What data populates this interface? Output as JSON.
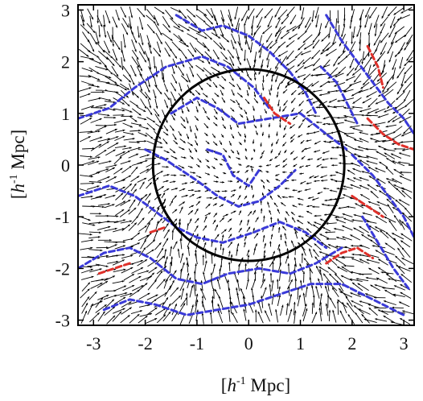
{
  "chart_data": {
    "type": "vector-field",
    "title": "",
    "xlabel": {
      "bracket_open": "[",
      "italic": "h",
      "sup": "-1",
      "rest": " Mpc]"
    },
    "ylabel": {
      "bracket_open": "[",
      "italic": "h",
      "sup": "-1",
      "rest": " Mpc]"
    },
    "xlim": [
      -3.3,
      3.2
    ],
    "ylim": [
      -3.1,
      3.1
    ],
    "xticks": [
      -3,
      -2,
      -1,
      0,
      1,
      2,
      3
    ],
    "yticks": [
      -3,
      -2,
      -1,
      0,
      1,
      2,
      3
    ],
    "xtick_labels": [
      "-3",
      "-2",
      "-1",
      "0",
      "1",
      "2",
      "3"
    ],
    "ytick_labels": [
      "-3",
      "-2",
      "-1",
      "0",
      "1",
      "2",
      "3"
    ],
    "circle": {
      "center": [
        0,
        0
      ],
      "radius": 1.85,
      "color": "#000000"
    },
    "colors": {
      "arrows": "#000000",
      "blue_contour": "#3a3ad8",
      "red_contour": "#e0302a",
      "frame": "#000000"
    },
    "blue_contours": [
      [
        [
          -3.3,
          0.9
        ],
        [
          -2.7,
          1.1
        ],
        [
          -2.2,
          1.5
        ],
        [
          -1.6,
          1.9
        ],
        [
          -0.9,
          2.1
        ],
        [
          -0.4,
          1.9
        ],
        [
          0.1,
          1.5
        ],
        [
          0.4,
          1.1
        ]
      ],
      [
        [
          -1.4,
          2.9
        ],
        [
          -0.9,
          2.6
        ],
        [
          -0.5,
          2.7
        ],
        [
          0.0,
          2.5
        ],
        [
          0.4,
          2.2
        ],
        [
          0.8,
          1.8
        ],
        [
          1.1,
          1.4
        ],
        [
          1.3,
          1.0
        ]
      ],
      [
        [
          -1.5,
          1.0
        ],
        [
          -1.0,
          1.3
        ],
        [
          -0.6,
          1.1
        ],
        [
          -0.2,
          0.8
        ],
        [
          0.4,
          0.9
        ],
        [
          1.0,
          1.0
        ],
        [
          1.5,
          0.6
        ],
        [
          1.9,
          0.3
        ]
      ],
      [
        [
          -2.0,
          0.3
        ],
        [
          -1.6,
          0.1
        ],
        [
          -1.3,
          -0.1
        ],
        [
          -1.0,
          -0.3
        ],
        [
          -0.6,
          -0.6
        ],
        [
          -0.2,
          -0.8
        ],
        [
          0.2,
          -0.7
        ],
        [
          0.6,
          -0.4
        ],
        [
          0.9,
          -0.1
        ]
      ],
      [
        [
          -0.8,
          0.3
        ],
        [
          -0.5,
          0.2
        ],
        [
          -0.3,
          -0.2
        ],
        [
          0.0,
          -0.4
        ],
        [
          0.2,
          -0.1
        ]
      ],
      [
        [
          -3.3,
          -0.6
        ],
        [
          -2.7,
          -0.4
        ],
        [
          -2.2,
          -0.6
        ],
        [
          -1.8,
          -0.9
        ],
        [
          -1.4,
          -1.2
        ],
        [
          -1.0,
          -1.4
        ],
        [
          -0.5,
          -1.5
        ],
        [
          0.1,
          -1.3
        ],
        [
          0.6,
          -1.1
        ],
        [
          1.1,
          -1.3
        ],
        [
          1.5,
          -1.6
        ]
      ],
      [
        [
          -3.3,
          -2.0
        ],
        [
          -2.8,
          -1.7
        ],
        [
          -2.3,
          -1.6
        ],
        [
          -1.9,
          -1.8
        ],
        [
          -1.4,
          -2.2
        ],
        [
          -0.9,
          -2.3
        ],
        [
          -0.4,
          -2.1
        ],
        [
          0.2,
          -2.0
        ],
        [
          0.8,
          -2.1
        ],
        [
          1.3,
          -1.9
        ],
        [
          1.8,
          -1.6
        ]
      ],
      [
        [
          -2.8,
          -2.8
        ],
        [
          -2.3,
          -2.6
        ],
        [
          -1.8,
          -2.7
        ],
        [
          -1.2,
          -2.9
        ],
        [
          -0.6,
          -2.8
        ],
        [
          0.0,
          -2.7
        ],
        [
          0.6,
          -2.5
        ],
        [
          1.2,
          -2.3
        ],
        [
          1.8,
          -2.3
        ],
        [
          2.4,
          -2.6
        ],
        [
          3.0,
          -2.9
        ]
      ],
      [
        [
          1.5,
          2.9
        ],
        [
          1.8,
          2.4
        ],
        [
          2.1,
          2.0
        ],
        [
          2.4,
          1.6
        ],
        [
          2.7,
          1.2
        ],
        [
          3.0,
          0.9
        ],
        [
          3.2,
          0.6
        ]
      ],
      [
        [
          2.0,
          0.2
        ],
        [
          2.4,
          -0.2
        ],
        [
          2.7,
          -0.6
        ],
        [
          3.0,
          -1.0
        ],
        [
          3.2,
          -1.4
        ]
      ],
      [
        [
          2.2,
          -1.0
        ],
        [
          2.5,
          -1.5
        ],
        [
          2.8,
          -2.0
        ],
        [
          3.1,
          -2.4
        ]
      ],
      [
        [
          1.4,
          1.9
        ],
        [
          1.7,
          1.6
        ],
        [
          1.9,
          1.2
        ],
        [
          2.1,
          0.8
        ]
      ]
    ],
    "red_contours": [
      [
        [
          0.3,
          1.3
        ],
        [
          0.5,
          1.0
        ],
        [
          0.8,
          0.8
        ]
      ],
      [
        [
          2.3,
          0.9
        ],
        [
          2.6,
          0.6
        ],
        [
          2.9,
          0.4
        ],
        [
          3.2,
          0.3
        ]
      ],
      [
        [
          2.3,
          2.3
        ],
        [
          2.5,
          1.9
        ],
        [
          2.6,
          1.5
        ]
      ],
      [
        [
          1.5,
          -1.9
        ],
        [
          1.8,
          -1.7
        ],
        [
          2.1,
          -1.6
        ],
        [
          2.4,
          -1.8
        ]
      ],
      [
        [
          -2.3,
          -1.9
        ],
        [
          -2.6,
          -2.0
        ],
        [
          -2.9,
          -2.1
        ]
      ],
      [
        [
          -1.9,
          -1.3
        ],
        [
          -1.6,
          -1.2
        ]
      ],
      [
        [
          2.0,
          -0.6
        ],
        [
          2.3,
          -0.8
        ],
        [
          2.6,
          -1.0
        ]
      ]
    ]
  }
}
